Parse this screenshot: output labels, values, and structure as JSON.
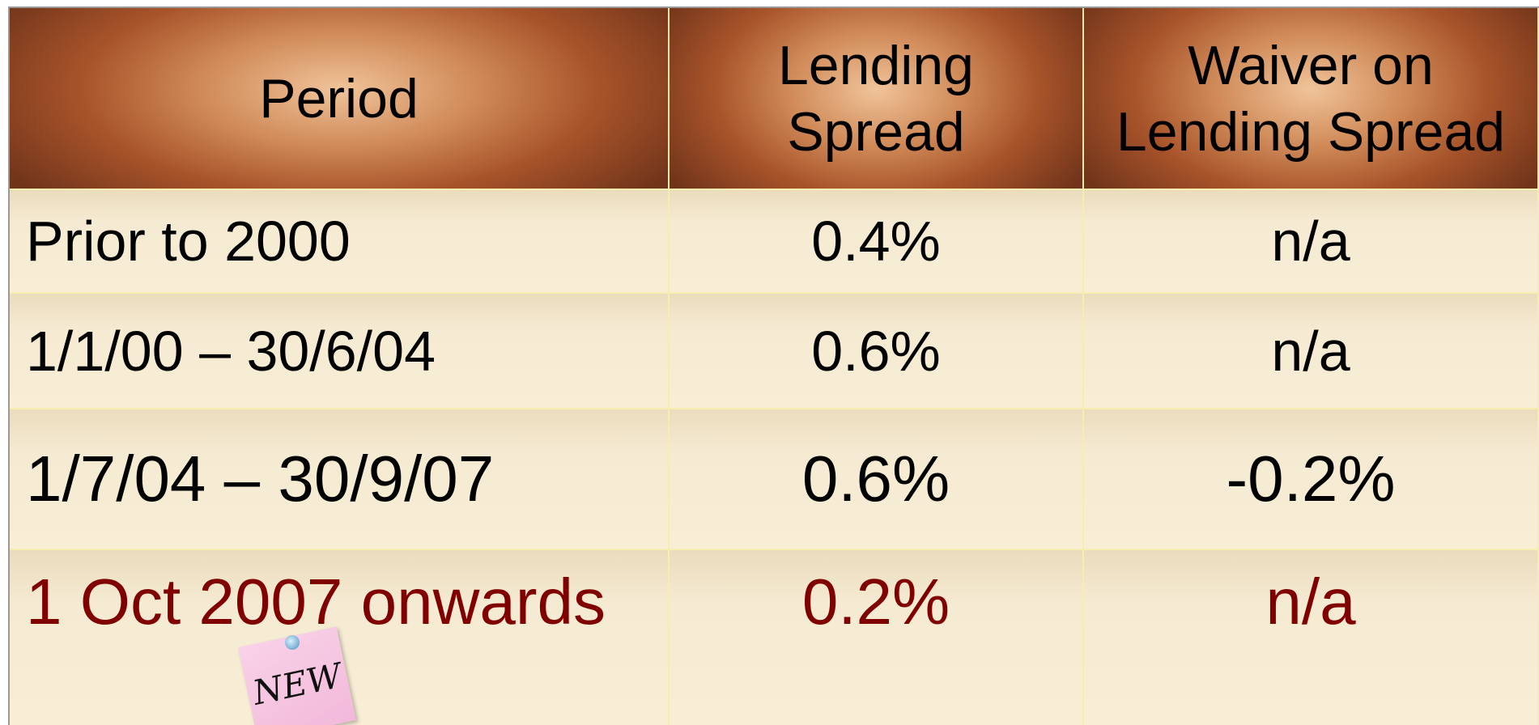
{
  "table": {
    "header": [
      [
        "Period"
      ],
      [
        "Lending",
        "Spread"
      ],
      [
        "Waiver on",
        "Lending Spread"
      ]
    ],
    "rows": [
      [
        "Prior to 2000",
        "0.4%",
        "n/a"
      ],
      [
        "1/1/00 – 30/6/04",
        "0.6%",
        "n/a"
      ],
      [
        "1/7/04 – 30/9/07",
        "0.6%",
        "-0.2%"
      ],
      [
        "1 Oct 2007 onwards",
        "0.2%",
        "n/a"
      ]
    ]
  },
  "note": "NEW"
}
